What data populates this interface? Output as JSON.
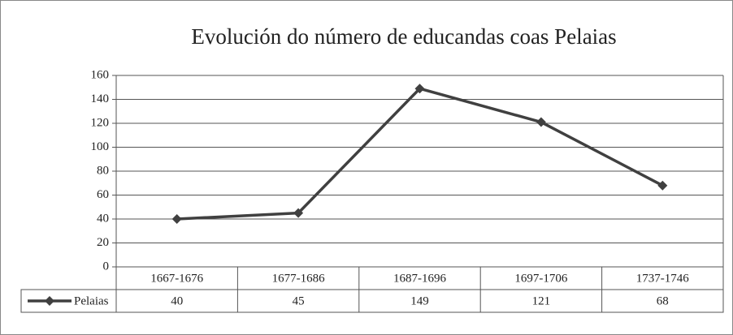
{
  "chart_data": {
    "type": "line",
    "title": "Evolución do número de educandas coas Pelaias",
    "categories": [
      "1667-1676",
      "1677-1686",
      "1687-1696",
      "1697-1706",
      "1737-1746"
    ],
    "series": [
      {
        "name": "Pelaias",
        "color": "#404040",
        "values": [
          40,
          45,
          149,
          121,
          68
        ]
      }
    ],
    "ylim": [
      0,
      160
    ],
    "yticks": [
      0,
      20,
      40,
      60,
      80,
      100,
      120,
      140,
      160
    ],
    "grid": true,
    "data_table": true
  }
}
